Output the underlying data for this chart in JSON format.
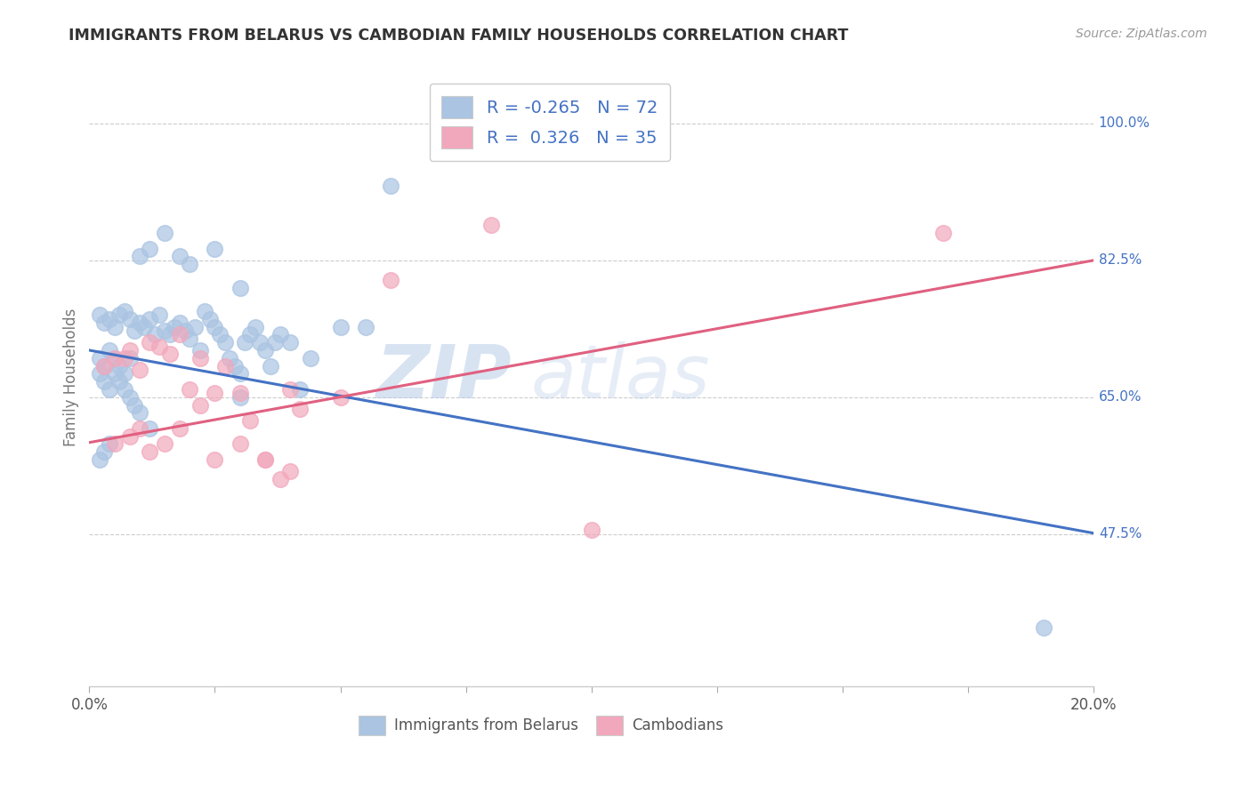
{
  "title": "IMMIGRANTS FROM BELARUS VS CAMBODIAN FAMILY HOUSEHOLDS CORRELATION CHART",
  "source": "Source: ZipAtlas.com",
  "ylabel": "Family Households",
  "ytick_labels": [
    "47.5%",
    "65.0%",
    "82.5%",
    "100.0%"
  ],
  "ytick_values": [
    0.475,
    0.65,
    0.825,
    1.0
  ],
  "xtick_values": [
    0.0,
    0.025,
    0.05,
    0.075,
    0.1,
    0.125,
    0.15,
    0.175,
    0.2
  ],
  "xtick_labels_show": [
    "0.0%",
    "",
    "",
    "",
    "",
    "",
    "",
    "",
    "20.0%"
  ],
  "xmin": 0.0,
  "xmax": 0.2,
  "ymin": 0.28,
  "ymax": 1.07,
  "legend_r_blue": "-0.265",
  "legend_n_blue": "72",
  "legend_r_pink": "0.326",
  "legend_n_pink": "35",
  "legend_label_blue": "Immigrants from Belarus",
  "legend_label_pink": "Cambodians",
  "blue_color": "#aac4e2",
  "pink_color": "#f2a8bc",
  "blue_line_color": "#4472c4",
  "pink_line_color": "#e06080",
  "watermark_zip": "ZIP",
  "watermark_atlas": "atlas",
  "blue_scatter_x": [
    0.002,
    0.003,
    0.004,
    0.005,
    0.006,
    0.007,
    0.008,
    0.009,
    0.01,
    0.011,
    0.012,
    0.013,
    0.014,
    0.015,
    0.016,
    0.017,
    0.018,
    0.019,
    0.02,
    0.021,
    0.022,
    0.023,
    0.024,
    0.025,
    0.026,
    0.027,
    0.028,
    0.029,
    0.03,
    0.031,
    0.032,
    0.033,
    0.034,
    0.035,
    0.036,
    0.037,
    0.038,
    0.04,
    0.042,
    0.044,
    0.002,
    0.003,
    0.004,
    0.005,
    0.006,
    0.007,
    0.008,
    0.01,
    0.012,
    0.015,
    0.018,
    0.02,
    0.025,
    0.03,
    0.002,
    0.003,
    0.004,
    0.005,
    0.006,
    0.007,
    0.008,
    0.009,
    0.01,
    0.012,
    0.05,
    0.06,
    0.002,
    0.003,
    0.004,
    0.19,
    0.055,
    0.03
  ],
  "blue_scatter_y": [
    0.755,
    0.745,
    0.75,
    0.74,
    0.755,
    0.76,
    0.75,
    0.735,
    0.745,
    0.74,
    0.75,
    0.73,
    0.755,
    0.735,
    0.73,
    0.74,
    0.745,
    0.735,
    0.725,
    0.74,
    0.71,
    0.76,
    0.75,
    0.74,
    0.73,
    0.72,
    0.7,
    0.69,
    0.68,
    0.72,
    0.73,
    0.74,
    0.72,
    0.71,
    0.69,
    0.72,
    0.73,
    0.72,
    0.66,
    0.7,
    0.7,
    0.69,
    0.71,
    0.7,
    0.69,
    0.68,
    0.7,
    0.83,
    0.84,
    0.86,
    0.83,
    0.82,
    0.84,
    0.79,
    0.68,
    0.67,
    0.66,
    0.68,
    0.67,
    0.66,
    0.65,
    0.64,
    0.63,
    0.61,
    0.74,
    0.92,
    0.57,
    0.58,
    0.59,
    0.355,
    0.74,
    0.65
  ],
  "pink_scatter_x": [
    0.003,
    0.005,
    0.007,
    0.008,
    0.01,
    0.012,
    0.014,
    0.016,
    0.018,
    0.02,
    0.022,
    0.025,
    0.027,
    0.03,
    0.032,
    0.035,
    0.038,
    0.04,
    0.042,
    0.05,
    0.005,
    0.008,
    0.01,
    0.012,
    0.015,
    0.018,
    0.022,
    0.025,
    0.03,
    0.035,
    0.04,
    0.06,
    0.08,
    0.17,
    0.1
  ],
  "pink_scatter_y": [
    0.69,
    0.7,
    0.7,
    0.71,
    0.685,
    0.72,
    0.715,
    0.705,
    0.73,
    0.66,
    0.7,
    0.655,
    0.69,
    0.655,
    0.62,
    0.57,
    0.545,
    0.66,
    0.635,
    0.65,
    0.59,
    0.6,
    0.61,
    0.58,
    0.59,
    0.61,
    0.64,
    0.57,
    0.59,
    0.57,
    0.555,
    0.8,
    0.87,
    0.86,
    0.48
  ],
  "blue_line_x": [
    0.0,
    0.2
  ],
  "blue_line_y": [
    0.71,
    0.476
  ],
  "pink_line_x": [
    0.0,
    0.2
  ],
  "pink_line_y": [
    0.592,
    0.825
  ]
}
